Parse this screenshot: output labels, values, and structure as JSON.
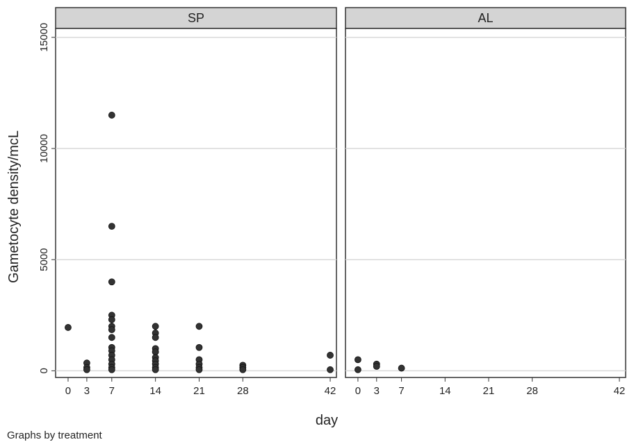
{
  "chart_data": {
    "type": "scatter",
    "ylabel": "Gametocyte density/mcL",
    "xlabel": "day",
    "note": "Graphs by treatment",
    "xlim": [
      -2,
      43
    ],
    "ylim": [
      -300,
      15400
    ],
    "x_ticks": [
      0,
      3,
      7,
      14,
      21,
      28,
      42
    ],
    "y_ticks": [
      0,
      5000,
      10000,
      15000
    ],
    "grid": true,
    "marker_color": "#333333",
    "panels": [
      {
        "title": "SP",
        "points": [
          {
            "x": 0,
            "y": 1950
          },
          {
            "x": 3,
            "y": 350
          },
          {
            "x": 3,
            "y": 150
          },
          {
            "x": 3,
            "y": 50
          },
          {
            "x": 7,
            "y": 11500
          },
          {
            "x": 7,
            "y": 6500
          },
          {
            "x": 7,
            "y": 4000
          },
          {
            "x": 7,
            "y": 2500
          },
          {
            "x": 7,
            "y": 2300
          },
          {
            "x": 7,
            "y": 2000
          },
          {
            "x": 7,
            "y": 1850
          },
          {
            "x": 7,
            "y": 1500
          },
          {
            "x": 7,
            "y": 1050
          },
          {
            "x": 7,
            "y": 900
          },
          {
            "x": 7,
            "y": 700
          },
          {
            "x": 7,
            "y": 500
          },
          {
            "x": 7,
            "y": 300
          },
          {
            "x": 7,
            "y": 150
          },
          {
            "x": 7,
            "y": 50
          },
          {
            "x": 14,
            "y": 2000
          },
          {
            "x": 14,
            "y": 1700
          },
          {
            "x": 14,
            "y": 1500
          },
          {
            "x": 14,
            "y": 1000
          },
          {
            "x": 14,
            "y": 850
          },
          {
            "x": 14,
            "y": 600
          },
          {
            "x": 14,
            "y": 450
          },
          {
            "x": 14,
            "y": 300
          },
          {
            "x": 14,
            "y": 150
          },
          {
            "x": 14,
            "y": 50
          },
          {
            "x": 21,
            "y": 2000
          },
          {
            "x": 21,
            "y": 1050
          },
          {
            "x": 21,
            "y": 500
          },
          {
            "x": 21,
            "y": 300
          },
          {
            "x": 21,
            "y": 150
          },
          {
            "x": 21,
            "y": 50
          },
          {
            "x": 28,
            "y": 250
          },
          {
            "x": 28,
            "y": 150
          },
          {
            "x": 28,
            "y": 50
          },
          {
            "x": 42,
            "y": 700
          },
          {
            "x": 42,
            "y": 50
          }
        ]
      },
      {
        "title": "AL",
        "points": [
          {
            "x": 0,
            "y": 500
          },
          {
            "x": 0,
            "y": 50
          },
          {
            "x": 3,
            "y": 300
          },
          {
            "x": 3,
            "y": 200
          },
          {
            "x": 7,
            "y": 120
          }
        ]
      }
    ]
  }
}
